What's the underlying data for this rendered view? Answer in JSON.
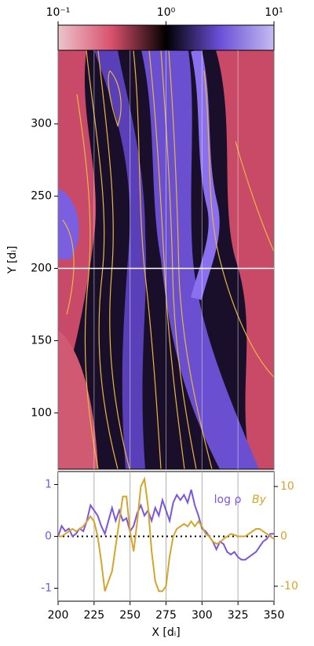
{
  "chart_data": [
    {
      "type": "heatmap",
      "colorbar": {
        "lim": [
          0.1,
          10
        ],
        "log": true,
        "ticks": [
          {
            "value": 0.1,
            "label": "10⁻¹"
          },
          {
            "value": 1,
            "label": "10⁰"
          },
          {
            "value": 10,
            "label": "10¹"
          }
        ],
        "colors": [
          "#ecc4cb",
          "#d8506c",
          "#000000",
          "#6a4fd8",
          "#c6bcf0"
        ]
      },
      "ylabel": "Y [dᵢ]",
      "xlim": [
        200,
        350
      ],
      "xticks": [
        200,
        225,
        250,
        275,
        300,
        325,
        350
      ],
      "ylim": [
        61,
        351
      ],
      "yticks": [
        100,
        150,
        200,
        250,
        300
      ],
      "hline": 200
    },
    {
      "type": "line",
      "xlabel": "X [dᵢ]",
      "x": [
        200,
        202.5,
        205,
        207.5,
        210,
        212.5,
        215,
        217.5,
        220,
        222.5,
        225,
        227.5,
        230,
        232.5,
        235,
        237.5,
        240,
        242.5,
        245,
        247.5,
        250,
        252.5,
        255,
        257.5,
        260,
        262.5,
        265,
        267.5,
        270,
        272.5,
        275,
        277.5,
        280,
        282.5,
        285,
        287.5,
        290,
        292.5,
        295,
        297.5,
        300,
        302.5,
        305,
        307.5,
        310,
        312.5,
        315,
        317.5,
        320,
        322.5,
        325,
        327.5,
        330,
        332.5,
        335,
        337.5,
        340,
        342.5,
        345,
        347.5,
        350
      ],
      "xlim": [
        200,
        350
      ],
      "xticks": [
        200,
        225,
        250,
        275,
        300,
        325,
        350
      ],
      "grid": true,
      "ylim": [
        -1.25,
        1.25
      ],
      "yticks": [
        -1,
        0,
        1
      ],
      "y2lim": [
        -13,
        13
      ],
      "y2ticks": [
        -10,
        0,
        10
      ],
      "hline": 0,
      "series": [
        {
          "name": "log ρ",
          "color": "#7b55e0",
          "values": [
            0.0,
            0.2,
            0.1,
            0.15,
            0.0,
            0.05,
            0.15,
            0.1,
            0.3,
            0.6,
            0.5,
            0.4,
            0.2,
            0.05,
            0.3,
            0.55,
            0.3,
            0.5,
            0.3,
            0.35,
            0.1,
            0.2,
            0.45,
            0.6,
            0.4,
            0.5,
            0.3,
            0.55,
            0.4,
            0.7,
            0.5,
            0.3,
            0.65,
            0.8,
            0.7,
            0.8,
            0.65,
            0.9,
            0.6,
            0.4,
            0.15,
            0.1,
            0.0,
            -0.1,
            -0.25,
            -0.1,
            -0.15,
            -0.3,
            -0.35,
            -0.3,
            -0.4,
            -0.45,
            -0.45,
            -0.4,
            -0.35,
            -0.3,
            -0.2,
            -0.1,
            -0.05,
            0.05,
            0.05
          ]
        },
        {
          "name": "By",
          "color": "#d4a52a",
          "axis": "y2",
          "values": [
            0,
            0,
            0.5,
            1,
            1.5,
            1,
            1.5,
            2,
            3,
            4,
            3,
            0,
            -5,
            -11,
            -9,
            -7,
            -2,
            3,
            8,
            8,
            1,
            -3,
            3,
            10,
            11.5,
            6,
            -3,
            -9,
            -11,
            -11,
            -10,
            -4,
            0,
            1.5,
            2,
            2.5,
            2,
            3,
            2,
            3,
            2,
            0.5,
            0,
            -1,
            -1.5,
            -1.2,
            -0.5,
            0,
            0.5,
            0.3,
            0,
            0,
            0,
            0.5,
            1,
            1.5,
            1.5,
            1,
            0.5,
            0,
            -0.5
          ]
        }
      ]
    }
  ]
}
